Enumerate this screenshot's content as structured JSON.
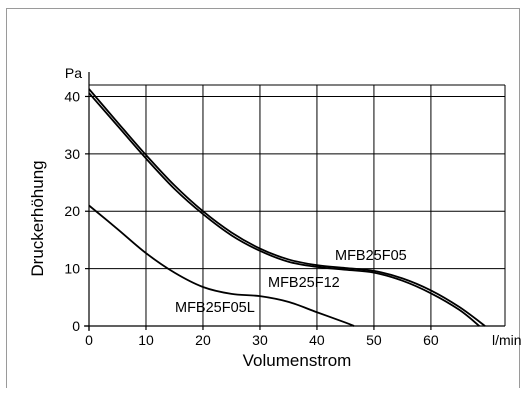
{
  "chart_data": {
    "type": "line",
    "title": "",
    "xlabel": "Volumenstrom",
    "ylabel": "Druckerhöhung",
    "x_unit": "l/min",
    "y_unit": "Pa",
    "xlim": [
      0,
      73
    ],
    "ylim": [
      0,
      42
    ],
    "x_ticks": [
      0,
      10,
      20,
      30,
      40,
      50,
      60
    ],
    "y_ticks": [
      0,
      10,
      20,
      30,
      40
    ],
    "grid": true,
    "series": [
      {
        "name": "MFB25F05",
        "points": [
          [
            0,
            41.3
          ],
          [
            5,
            35.5
          ],
          [
            10,
            29.8
          ],
          [
            15,
            24.5
          ],
          [
            20,
            20
          ],
          [
            25,
            16.3
          ],
          [
            30,
            13.5
          ],
          [
            35,
            11.6
          ],
          [
            40,
            10.6
          ],
          [
            45,
            10.1
          ],
          [
            50,
            9.6
          ],
          [
            55,
            8.3
          ],
          [
            60,
            6.2
          ],
          [
            65,
            3.3
          ],
          [
            69.5,
            0
          ]
        ]
      },
      {
        "name": "MFB25F12",
        "points": [
          [
            0,
            40.6
          ],
          [
            5,
            34.9
          ],
          [
            10,
            29.2
          ],
          [
            15,
            23.9
          ],
          [
            20,
            19.5
          ],
          [
            25,
            15.8
          ],
          [
            30,
            13.1
          ],
          [
            35,
            11.2
          ],
          [
            40,
            10.3
          ],
          [
            45,
            9.8
          ],
          [
            50,
            9.3
          ],
          [
            55,
            7.9
          ],
          [
            60,
            5.7
          ],
          [
            65,
            2.8
          ],
          [
            68.5,
            0
          ]
        ]
      },
      {
        "name": "MFB25F05L",
        "points": [
          [
            0,
            21
          ],
          [
            5,
            16.9
          ],
          [
            10,
            12.7
          ],
          [
            15,
            9.3
          ],
          [
            20,
            6.8
          ],
          [
            25,
            5.6
          ],
          [
            30,
            5.2
          ],
          [
            35,
            4.2
          ],
          [
            40,
            2.4
          ],
          [
            45,
            0.6
          ],
          [
            46.5,
            0
          ]
        ]
      }
    ]
  }
}
